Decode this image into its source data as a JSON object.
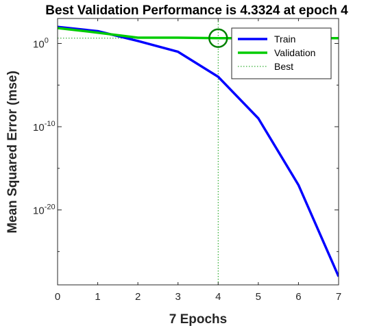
{
  "chart_data": {
    "type": "line",
    "title": "Best Validation Performance is 4.3324 at epoch 4",
    "xlabel": "7 Epochs",
    "ylabel": "Mean Squared Error  (mse)",
    "xlim": [
      0,
      7
    ],
    "ylim": [
      1e-29,
      1000.0
    ],
    "yscale": "log",
    "x_ticks": [
      "0",
      "1",
      "2",
      "3",
      "4",
      "5",
      "6",
      "7"
    ],
    "y_ticks": [
      {
        "base": "10",
        "exp": "0",
        "value": 1
      },
      {
        "base": "10",
        "exp": "-10",
        "value": 1e-10
      },
      {
        "base": "10",
        "exp": "-20",
        "value": 1e-20
      }
    ],
    "grid": false,
    "legend_position": "top-right",
    "series": [
      {
        "name": "Train",
        "color": "#0000ff",
        "x": [
          0,
          1,
          2,
          3,
          4,
          5,
          6,
          7
        ],
        "y": [
          100,
          30,
          2,
          0.1,
          0.0001,
          1e-09,
          1e-17,
          1e-28
        ]
      },
      {
        "name": "Validation",
        "color": "#00cc00",
        "x": [
          0,
          1,
          2,
          3,
          4,
          5,
          6,
          7
        ],
        "y": [
          70,
          20,
          5,
          5,
          4.3324,
          4.3324,
          4.3324,
          4.3324
        ]
      },
      {
        "name": "Best",
        "color": "#009900",
        "style": "dotted"
      }
    ],
    "best": {
      "epoch": 4,
      "value": 4.3324,
      "marker_color": "#008000"
    }
  }
}
